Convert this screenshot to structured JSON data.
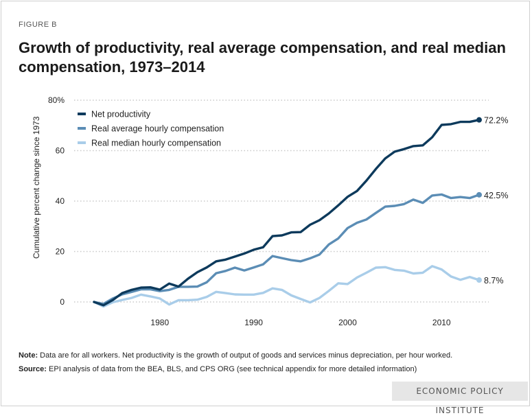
{
  "figure_label": "FIGURE B",
  "notes": {
    "note_label": "Note:",
    "note_text": " Data are for all workers. Net productivity is the growth of output of goods and services minus depreciation, per hour worked.",
    "source_label": "Source:",
    "source_text": " EPI analysis of data from the BEA, BLS, and CPS ORG (see technical appendix for more detailed information)"
  },
  "brand": "ECONOMIC POLICY INSTITUTE",
  "chart_data": {
    "type": "line",
    "title": "Growth of productivity, real average compensation, and real median compensation, 1973–2014",
    "xlabel": "",
    "ylabel": "Cumulative percent change since 1973",
    "xlim": [
      1973,
      2014
    ],
    "ylim": [
      0,
      80
    ],
    "x_ticks": [
      1980,
      1990,
      2000,
      2010
    ],
    "y_ticks": [
      {
        "value": 0,
        "label": "0"
      },
      {
        "value": 20,
        "label": "20"
      },
      {
        "value": 40,
        "label": "40"
      },
      {
        "value": 60,
        "label": "60"
      },
      {
        "value": 80,
        "label": "80%"
      }
    ],
    "grid": true,
    "legend": "top-left",
    "x": [
      1973,
      1974,
      1975,
      1976,
      1977,
      1978,
      1979,
      1980,
      1981,
      1982,
      1983,
      1984,
      1985,
      1986,
      1987,
      1988,
      1989,
      1990,
      1991,
      1992,
      1993,
      1994,
      1995,
      1996,
      1997,
      1998,
      1999,
      2000,
      2001,
      2002,
      2003,
      2004,
      2005,
      2006,
      2007,
      2008,
      2009,
      2010,
      2011,
      2012,
      2013,
      2014
    ],
    "series": [
      {
        "name": "Net productivity",
        "color": "#0d3a5c",
        "end_label": "72.2%",
        "values": [
          0,
          -1.3,
          0.8,
          3.5,
          4.8,
          5.7,
          5.8,
          4.9,
          7.3,
          6.1,
          9.2,
          11.8,
          13.7,
          16.1,
          16.8,
          18.0,
          19.2,
          20.7,
          21.7,
          26.1,
          26.4,
          27.6,
          27.7,
          30.6,
          32.4,
          35.1,
          38.3,
          41.7,
          44.0,
          48.1,
          52.7,
          56.9,
          59.6,
          60.6,
          61.8,
          62.1,
          65.3,
          70.2,
          70.5,
          71.4,
          71.4,
          72.2
        ]
      },
      {
        "name": "Real average hourly compensation",
        "color": "#5b8db5",
        "end_label": "42.5%",
        "values": [
          0,
          -0.8,
          1.4,
          3.0,
          4.0,
          5.0,
          5.0,
          4.3,
          4.8,
          6.0,
          6.0,
          6.1,
          7.8,
          11.4,
          12.3,
          13.6,
          12.5,
          13.7,
          14.9,
          18.2,
          17.4,
          16.6,
          16.1,
          17.3,
          18.8,
          22.8,
          25.2,
          29.3,
          31.4,
          32.7,
          35.3,
          37.8,
          38.1,
          38.8,
          40.6,
          39.3,
          42.2,
          42.6,
          41.2,
          41.6,
          41.2,
          42.5
        ]
      },
      {
        "name": "Real median hourly compensation",
        "color": "#a9cde9",
        "end_label": "8.7%",
        "values": [
          0,
          -1.8,
          -0.1,
          0.8,
          1.6,
          2.9,
          2.2,
          1.4,
          -1.0,
          0.7,
          0.7,
          0.9,
          2.0,
          4.0,
          3.5,
          3.0,
          2.9,
          2.9,
          3.6,
          5.4,
          4.8,
          2.6,
          1.2,
          -0.2,
          1.6,
          4.4,
          7.4,
          7.1,
          9.7,
          11.6,
          13.6,
          13.8,
          12.7,
          12.4,
          11.3,
          11.6,
          14.2,
          12.9,
          10.1,
          8.8,
          9.9,
          8.7
        ]
      }
    ]
  }
}
